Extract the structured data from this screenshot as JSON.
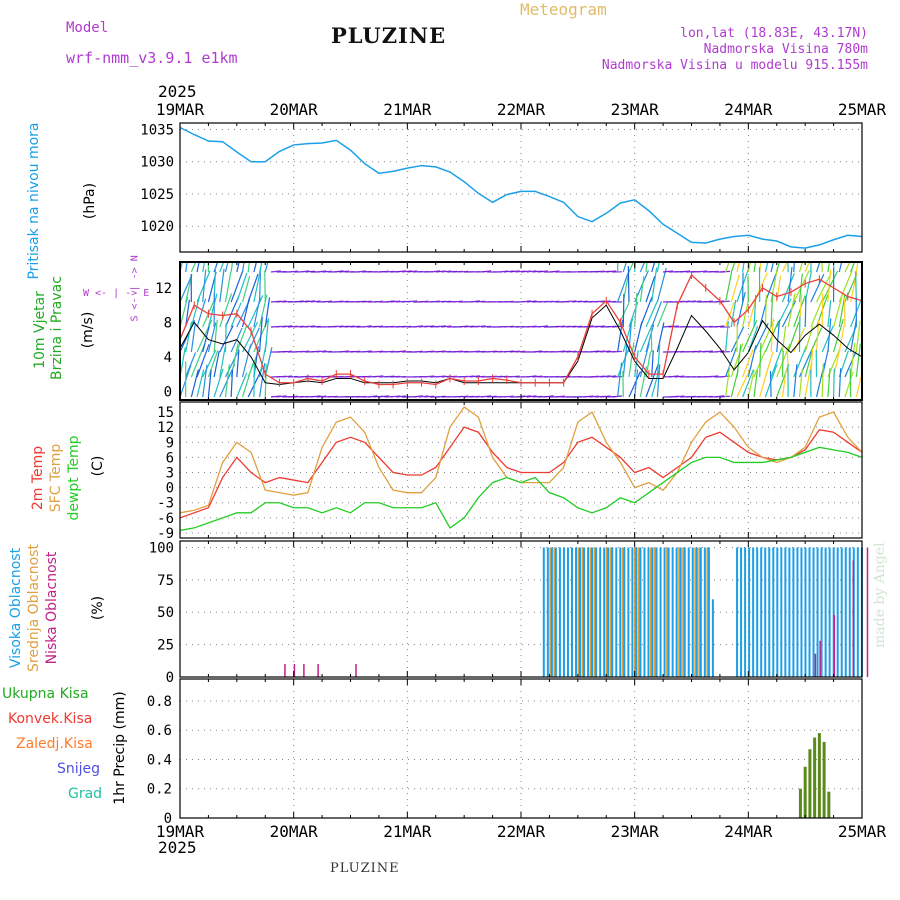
{
  "header": {
    "model_label": "Model",
    "model_name": "wrf-nmm_v3.9.1 e1km",
    "station": "PLUZINE",
    "subtitle": "Meteogram",
    "lonlat": "lon,lat (18.83E, 43.17N)",
    "elevation": "Nadmorska Visina 780m",
    "model_elevation": "Nadmorska Visina u modelu 915.155m"
  },
  "time_axis": {
    "year": "2025",
    "labels": [
      "19MAR",
      "20MAR",
      "21MAR",
      "22MAR",
      "23MAR",
      "24MAR",
      "25MAR"
    ]
  },
  "watermark": "made by Angel",
  "footer_station": "PLUZINE",
  "colors": {
    "pressure": "#1aa0e8",
    "gust": "#000000",
    "wind_speed": "#e8403a",
    "temp_2m": "#ee3a30",
    "temp_sfc": "#e0a040",
    "dewpoint": "#22cc22",
    "cloud_high": "#1aa0e8",
    "cloud_mid": "#e0a040",
    "cloud_low": "#c0208a",
    "precip_total": "#22aa22",
    "precip_conv": "#ee3a30",
    "precip_ice": "#ff7a2a",
    "snow": "#5050e0",
    "graupel": "#22c0a0"
  },
  "panel_labels": {
    "pressure": [
      "Pritisak na nivou mora",
      "(hPa)"
    ],
    "wind": [
      "10m Vjetar",
      "Brzina i Pravac",
      "(m/s)"
    ],
    "compass": [
      "W <- | -> E",
      "S <- | -> N"
    ],
    "temp": [
      "2m Temp",
      "SFC Temp",
      "dewpt Temp",
      "(C)"
    ],
    "cloud": [
      "Visoka Oblacnost",
      "Srednja Oblacnost",
      "Niska Oblacnost",
      "(%)"
    ],
    "precip_legend": [
      "Ukupna Kisa",
      "Konvek.Kisa",
      "Zaledj.Kisa",
      "Snijeg",
      "Grad"
    ],
    "precip_unit": "1hr Precip (mm)"
  },
  "chart_data": [
    {
      "type": "line",
      "ylabel": "(hPa)",
      "yticks": [
        "1035",
        "1030",
        "1025",
        "1020"
      ],
      "ylim": [
        1016,
        1036
      ],
      "x": [
        0,
        3,
        6,
        9,
        12,
        15,
        18,
        21,
        24,
        27,
        30,
        33,
        36,
        39,
        42,
        45,
        48,
        51,
        54,
        57,
        60,
        63,
        66,
        69,
        72,
        75,
        78,
        81,
        84,
        87,
        90,
        93,
        96,
        99,
        102,
        105,
        108,
        111,
        114,
        117,
        120,
        123,
        126,
        129,
        132,
        135,
        138,
        141,
        144
      ],
      "series": [
        {
          "name": "Pritisak na nivou mora",
          "values": [
            1035.3,
            1034.2,
            1033.2,
            1033.1,
            1031.5,
            1030.0,
            1030.0,
            1031.6,
            1032.6,
            1032.8,
            1032.9,
            1033.3,
            1031.8,
            1029.7,
            1028.2,
            1028.5,
            1029.0,
            1029.4,
            1029.2,
            1028.4,
            1026.9,
            1025.1,
            1023.7,
            1024.9,
            1025.4,
            1025.4,
            1024.6,
            1023.7,
            1021.5,
            1020.7,
            1022.0,
            1023.6,
            1024.1,
            1022.4,
            1020.3,
            1018.9,
            1017.5,
            1017.4,
            1018.0,
            1018.4,
            1018.6,
            1018.0,
            1017.7,
            1016.8,
            1016.6,
            1017.1,
            1017.9,
            1018.6,
            1018.4
          ]
        }
      ]
    },
    {
      "type": "line",
      "ylabel": "(m/s)",
      "yticks": [
        "12",
        "8",
        "4",
        "0"
      ],
      "ylim": [
        -1,
        15
      ],
      "x": [
        0,
        3,
        6,
        9,
        12,
        15,
        18,
        21,
        24,
        27,
        30,
        33,
        36,
        39,
        42,
        45,
        48,
        51,
        54,
        57,
        60,
        63,
        66,
        69,
        72,
        75,
        78,
        81,
        84,
        87,
        90,
        93,
        96,
        99,
        102,
        105,
        108,
        111,
        114,
        117,
        120,
        123,
        126,
        129,
        132,
        135,
        138,
        141,
        144
      ],
      "series": [
        {
          "name": "gust",
          "values": [
            5.0,
            8.0,
            6.0,
            5.5,
            6.0,
            4.0,
            1.0,
            0.8,
            1.0,
            1.2,
            1.0,
            1.5,
            1.5,
            1.0,
            1.0,
            1.0,
            1.2,
            1.2,
            1.0,
            1.5,
            1.0,
            1.0,
            1.0,
            1.0,
            1.0,
            1.0,
            1.0,
            1.0,
            3.5,
            8.5,
            10.0,
            7.0,
            3.5,
            1.5,
            1.5,
            5.0,
            8.8,
            7.0,
            5.0,
            2.5,
            4.5,
            8.2,
            6.0,
            4.5,
            6.5,
            7.8,
            6.5,
            5.0,
            4.0
          ]
        },
        {
          "name": "wind speed",
          "values": [
            6.0,
            10.0,
            9.0,
            8.8,
            9.0,
            7.0,
            2.0,
            1.0,
            1.0,
            1.5,
            1.2,
            2.0,
            2.0,
            1.2,
            0.8,
            0.8,
            1.0,
            1.0,
            0.8,
            1.5,
            1.2,
            1.2,
            1.5,
            1.3,
            1.0,
            1.0,
            1.0,
            1.0,
            4.0,
            9.0,
            10.5,
            8.0,
            4.0,
            2.0,
            2.0,
            10.0,
            13.5,
            12.0,
            10.5,
            8.0,
            9.5,
            12.0,
            11.0,
            11.5,
            12.5,
            13.0,
            12.0,
            11.0,
            10.5
          ]
        }
      ]
    },
    {
      "type": "line",
      "ylabel": "(C)",
      "yticks": [
        "15",
        "12",
        "9",
        "6",
        "3",
        "0",
        "-3",
        "-6",
        "-9"
      ],
      "ylim": [
        -10,
        17
      ],
      "x": [
        0,
        3,
        6,
        9,
        12,
        15,
        18,
        21,
        24,
        27,
        30,
        33,
        36,
        39,
        42,
        45,
        48,
        51,
        54,
        57,
        60,
        63,
        66,
        69,
        72,
        75,
        78,
        81,
        84,
        87,
        90,
        93,
        96,
        99,
        102,
        105,
        108,
        111,
        114,
        117,
        120,
        123,
        126,
        129,
        132,
        135,
        138,
        141,
        144
      ],
      "series": [
        {
          "name": "2m Temp",
          "values": [
            -6,
            -5,
            -4,
            2,
            6,
            3,
            1,
            2,
            1.5,
            1,
            5,
            9,
            10,
            9,
            6,
            3,
            2.5,
            2.5,
            4,
            8,
            12,
            11,
            7,
            4,
            3,
            3,
            3,
            5,
            9,
            10,
            8,
            6,
            3,
            4,
            2,
            4,
            6,
            10,
            11,
            9,
            7,
            6,
            5.5,
            6,
            7.5,
            11.5,
            11,
            9,
            7
          ]
        },
        {
          "name": "SFC Temp",
          "values": [
            -5,
            -4.5,
            -3.5,
            5,
            9,
            7,
            -0.5,
            -1,
            -1.5,
            -1,
            8,
            13,
            14,
            11,
            4,
            -0.5,
            -1,
            -1,
            2,
            12,
            16,
            14,
            6,
            2,
            1,
            1,
            1,
            4,
            13,
            15,
            9,
            5,
            0,
            1,
            -0.5,
            3,
            9,
            13,
            15,
            12,
            8,
            6,
            5,
            6,
            8,
            14,
            15,
            10,
            7
          ]
        },
        {
          "name": "dewpt Temp",
          "values": [
            -8.5,
            -8,
            -7,
            -6,
            -5,
            -5,
            -3,
            -3,
            -4,
            -4,
            -5,
            -4,
            -5,
            -3,
            -3,
            -4,
            -4,
            -4,
            -3,
            -8,
            -6,
            -2,
            1,
            2,
            1,
            2,
            -1,
            -2,
            -4,
            -5,
            -4,
            -2,
            -3,
            -1,
            1,
            3,
            5,
            6,
            6,
            5,
            5,
            5,
            5.5,
            6,
            7,
            8,
            7.5,
            7,
            6
          ]
        }
      ]
    },
    {
      "type": "bar",
      "ylabel": "(%)",
      "yticks": [
        "100",
        "75",
        "50",
        "25",
        "0"
      ],
      "ylim": [
        0,
        105
      ],
      "series": [
        {
          "name": "Visoka Oblacnost",
          "note": "~100% from 21MAR 20h through 23MAR 16h; gap until 24MAR 03h; ~100% again to end"
        },
        {
          "name": "Srednja Oblacnost",
          "note": "~100% interleaved bars 21MAR 20h - 23MAR 12h and 24MAR 17h - 24MAR 20h"
        },
        {
          "name": "Niska Oblacnost",
          "values_sparse": [
            [
              22,
              10
            ],
            [
              24,
              10
            ],
            [
              26,
              10
            ],
            [
              29,
              10
            ],
            [
              37,
              10
            ],
            [
              134,
              18
            ],
            [
              135,
              28
            ],
            [
              138,
              48
            ],
            [
              142,
              90
            ],
            [
              145,
              100
            ]
          ]
        }
      ]
    },
    {
      "type": "bar",
      "ylabel": "1hr Precip (mm)",
      "yticks": [
        "0.8",
        "0.6",
        "0.4",
        "0.2",
        "0"
      ],
      "ylim": [
        0,
        0.95
      ],
      "series": [
        {
          "name": "Ukupna Kisa",
          "x_hours": [
            131,
            132,
            133,
            134,
            135,
            136,
            137
          ],
          "values": [
            0.2,
            0.35,
            0.47,
            0.55,
            0.58,
            0.52,
            0.18
          ]
        }
      ]
    }
  ]
}
